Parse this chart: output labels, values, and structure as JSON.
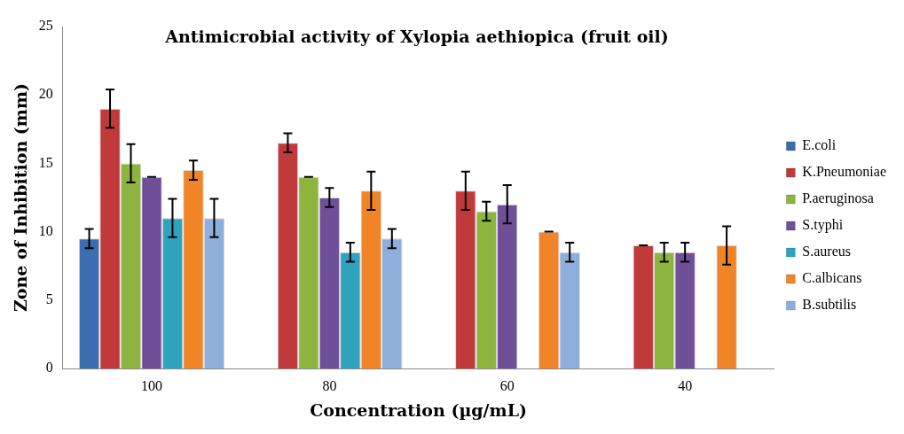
{
  "chart_data": {
    "type": "bar",
    "title": "Antimicrobial activity of Xylopia aethiopica (fruit oil)",
    "xlabel": "Concentration (µg/mL)",
    "ylabel": "Zone of Inhibition (mm)",
    "categories": [
      "100",
      "80",
      "60",
      "40"
    ],
    "ylim": [
      0,
      25
    ],
    "yticks": [
      0,
      5,
      10,
      15,
      20,
      25
    ],
    "grid": false,
    "legend": "right",
    "series": [
      {
        "name": "E.coli",
        "color": "#3a6eb0",
        "values": [
          9.5,
          null,
          null,
          null
        ],
        "errors": [
          0.7,
          null,
          null,
          null
        ]
      },
      {
        "name": "K.Pneumoniae",
        "color": "#c0393b",
        "values": [
          19,
          16.5,
          13,
          9
        ],
        "errors": [
          1.4,
          0.7,
          1.4,
          0
        ]
      },
      {
        "name": "P.aeruginosa",
        "color": "#8db43e",
        "values": [
          15,
          14,
          11.5,
          8.5
        ],
        "errors": [
          1.4,
          0,
          0.7,
          0.7
        ]
      },
      {
        "name": "S.typhi",
        "color": "#6f4f98",
        "values": [
          14,
          12.5,
          12,
          8.5
        ],
        "errors": [
          0,
          0.7,
          1.4,
          0.7
        ]
      },
      {
        "name": "S.aureus",
        "color": "#2fa2be",
        "values": [
          11,
          8.5,
          null,
          null
        ],
        "errors": [
          1.4,
          0.7,
          null,
          null
        ]
      },
      {
        "name": "C.albicans",
        "color": "#f08426",
        "values": [
          14.5,
          13,
          10,
          9
        ],
        "errors": [
          0.7,
          1.4,
          0,
          1.4
        ]
      },
      {
        "name": "B.subtilis",
        "color": "#8eaedc",
        "values": [
          11,
          9.5,
          8.5,
          null
        ],
        "errors": [
          1.4,
          0.7,
          0.7,
          null
        ]
      }
    ]
  }
}
